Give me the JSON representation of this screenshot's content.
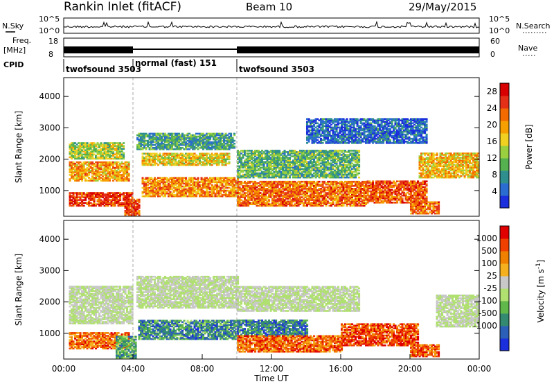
{
  "header": {
    "station": "Rankin Inlet (fitACF)",
    "beam": "Beam 10",
    "date": "29/May/2015"
  },
  "top_panels": {
    "nsky": {
      "left_label": "N.Sky",
      "left_ticks": [
        "10^5",
        "10^0"
      ],
      "right_label": "N.Search",
      "right_ticks": [
        "10^5",
        "10^0"
      ]
    },
    "freq": {
      "left_label_line1": "Freq.",
      "left_label_line2": "[MHz]",
      "left_ticks": [
        "18",
        "8"
      ],
      "right_label": "Nave",
      "right_ticks": [
        "60",
        "0"
      ]
    },
    "cpid": {
      "label": "CPID",
      "segments": [
        {
          "name": "twofsound 3503",
          "start_hour": 0.0,
          "end_hour": 4.0
        },
        {
          "name": "normal (fast) 151",
          "start_hour": 4.0,
          "end_hour": 10.0
        },
        {
          "name": "twofsound 3503",
          "start_hour": 10.0,
          "end_hour": 24.0
        }
      ]
    }
  },
  "chart_data": [
    {
      "type": "heatmap",
      "name": "power",
      "ylabel": "Slant Range [km]",
      "ylim": [
        180,
        4600
      ],
      "xlim_hours": [
        0,
        24
      ],
      "y_ticks": [
        1000,
        2000,
        3000,
        4000
      ],
      "colorbar": {
        "label": "Power [dB]",
        "ticks": [
          4,
          8,
          12,
          16,
          20,
          24,
          28
        ],
        "range": [
          0,
          30
        ],
        "colors": [
          "#1c2fdc",
          "#2b6cd0",
          "#2f8f8f",
          "#55b050",
          "#9ad040",
          "#f0d020",
          "#f5a000",
          "#f26a00",
          "#e53018",
          "#d80000"
        ]
      },
      "bands": [
        {
          "x0": 0.3,
          "x1": 4.0,
          "y0": 500,
          "y1": 950,
          "level": 0.85
        },
        {
          "x0": 0.3,
          "x1": 3.8,
          "y0": 1300,
          "y1": 1900,
          "level": 0.65
        },
        {
          "x0": 0.3,
          "x1": 3.5,
          "y0": 2000,
          "y1": 2500,
          "level": 0.45
        },
        {
          "x0": 3.5,
          "x1": 4.3,
          "y0": 200,
          "y1": 700,
          "level": 0.85
        },
        {
          "x0": 4.5,
          "x1": 10.0,
          "y0": 800,
          "y1": 1400,
          "level": 0.7
        },
        {
          "x0": 4.5,
          "x1": 9.5,
          "y0": 1800,
          "y1": 2200,
          "level": 0.55
        },
        {
          "x0": 4.2,
          "x1": 9.8,
          "y0": 2300,
          "y1": 2800,
          "level": 0.3
        },
        {
          "x0": 10.0,
          "x1": 17.5,
          "y0": 500,
          "y1": 1300,
          "level": 0.75
        },
        {
          "x0": 10.0,
          "x1": 17.0,
          "y0": 1400,
          "y1": 2300,
          "level": 0.35
        },
        {
          "x0": 17.5,
          "x1": 21.0,
          "y0": 600,
          "y1": 1300,
          "level": 0.8
        },
        {
          "x0": 20.0,
          "x1": 21.7,
          "y0": 250,
          "y1": 650,
          "level": 0.75
        },
        {
          "x0": 20.5,
          "x1": 24.0,
          "y0": 1400,
          "y1": 2200,
          "level": 0.6
        },
        {
          "x0": 14.0,
          "x1": 21.0,
          "y0": 2500,
          "y1": 3300,
          "level": 0.15
        }
      ]
    },
    {
      "type": "heatmap",
      "name": "velocity",
      "ylabel": "Slant Range [km]",
      "xlabel": "Time UT",
      "ylim": [
        180,
        4600
      ],
      "xlim_hours": [
        0,
        24
      ],
      "y_ticks": [
        1000,
        2000,
        3000,
        4000
      ],
      "x_ticks": [
        "00:00",
        "04:00",
        "08:00",
        "12:00",
        "16:00",
        "20:00",
        "00:00"
      ],
      "colorbar": {
        "label": "Velocity [m s^-1]",
        "ticks": [
          1000,
          500,
          100,
          25,
          -25,
          -100,
          -500,
          -1000
        ],
        "colors": [
          "#1c2fdc",
          "#2c5fb8",
          "#338a70",
          "#60b84a",
          "#b0e070",
          "#c8c8c8",
          "#f5b020",
          "#f08000",
          "#f04000",
          "#e00000"
        ]
      },
      "bands": [
        {
          "x0": 0.3,
          "x1": 4.0,
          "y0": 1300,
          "y1": 2500,
          "level": 0.5
        },
        {
          "x0": 4.2,
          "x1": 10.0,
          "y0": 1800,
          "y1": 2800,
          "level": 0.5
        },
        {
          "x0": 10.0,
          "x1": 17.0,
          "y0": 1700,
          "y1": 2500,
          "level": 0.5
        },
        {
          "x0": 21.5,
          "x1": 24.0,
          "y0": 1200,
          "y1": 2200,
          "level": 0.5
        },
        {
          "x0": 0.3,
          "x1": 3.8,
          "y0": 500,
          "y1": 1000,
          "level": 0.78
        },
        {
          "x0": 3.0,
          "x1": 4.2,
          "y0": 200,
          "y1": 900,
          "level": 0.3
        },
        {
          "x0": 4.3,
          "x1": 10.0,
          "y0": 800,
          "y1": 1400,
          "level": 0.25
        },
        {
          "x0": 10.0,
          "x1": 14.0,
          "y0": 900,
          "y1": 1400,
          "level": 0.22
        },
        {
          "x0": 10.0,
          "x1": 16.0,
          "y0": 400,
          "y1": 900,
          "level": 0.8
        },
        {
          "x0": 16.0,
          "x1": 20.5,
          "y0": 600,
          "y1": 1300,
          "level": 0.85
        },
        {
          "x0": 20.0,
          "x1": 21.7,
          "y0": 250,
          "y1": 650,
          "level": 0.8
        }
      ]
    }
  ]
}
